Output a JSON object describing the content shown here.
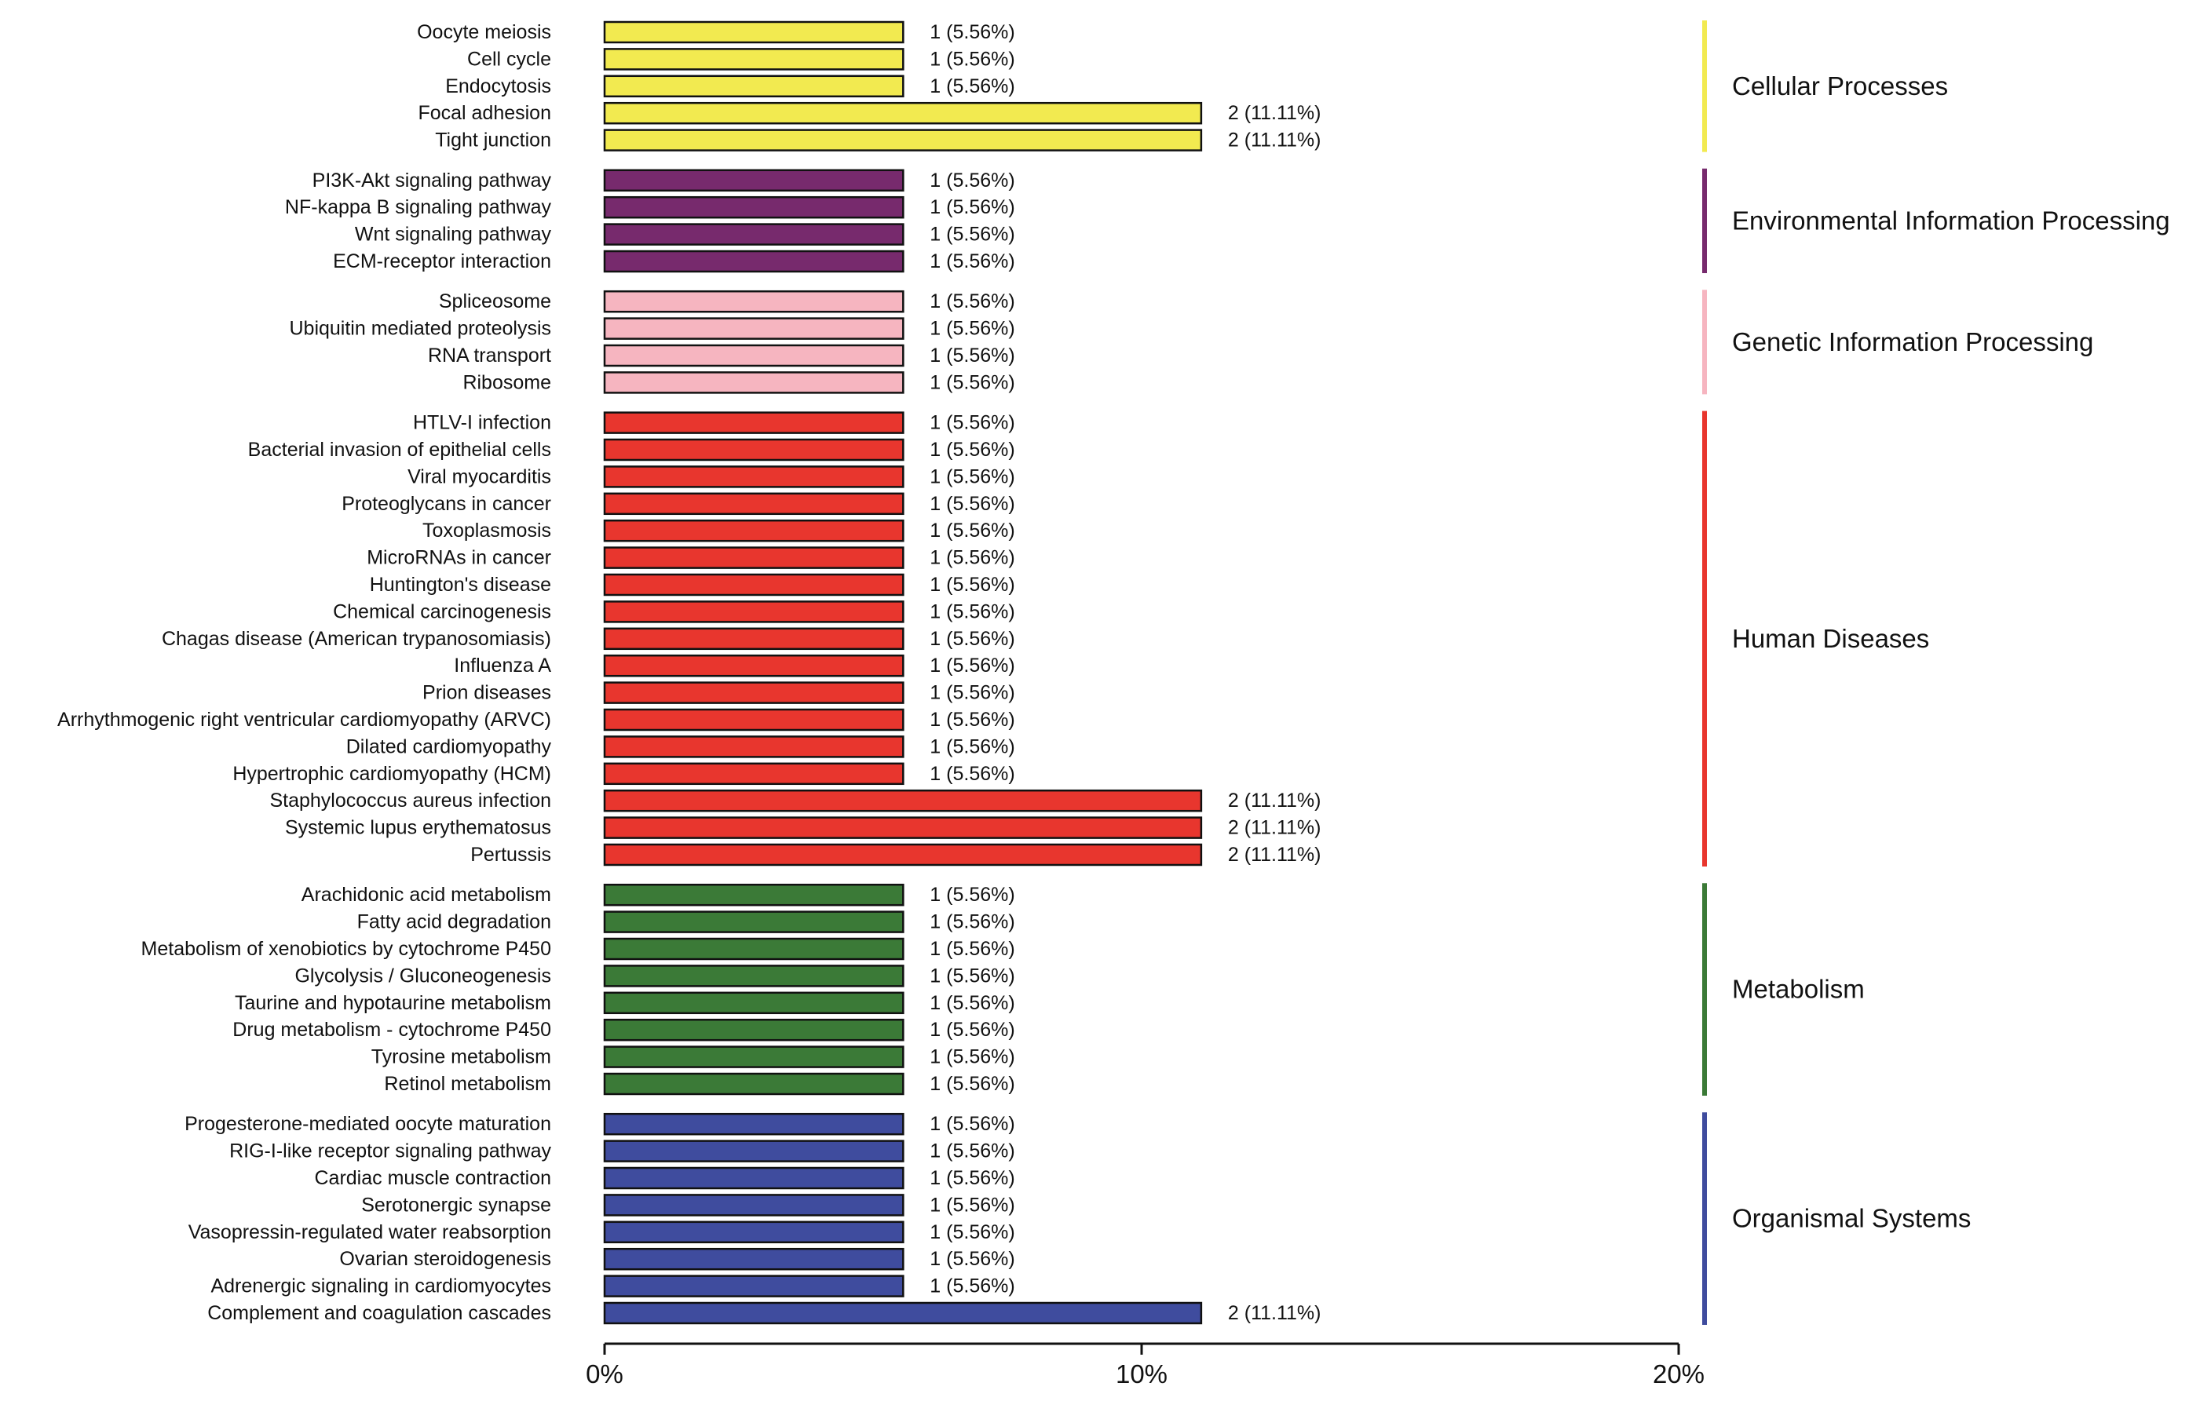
{
  "chart_data": {
    "type": "bar",
    "orientation": "horizontal",
    "title": "",
    "xlabel": "",
    "ylabel": "",
    "xlim": [
      0,
      20
    ],
    "xticks": [
      "0%",
      "10%",
      "20%"
    ],
    "grid": false,
    "groups": [
      {
        "name": "Cellular Processes",
        "color": "#f2ea50",
        "items": [
          {
            "label": "Oocyte meiosis",
            "count": 1,
            "percent": 5.56,
            "text": "1 (5.56%)"
          },
          {
            "label": "Cell cycle",
            "count": 1,
            "percent": 5.56,
            "text": "1 (5.56%)"
          },
          {
            "label": "Endocytosis",
            "count": 1,
            "percent": 5.56,
            "text": "1 (5.56%)"
          },
          {
            "label": "Focal adhesion",
            "count": 2,
            "percent": 11.11,
            "text": "2 (11.11%)"
          },
          {
            "label": "Tight junction",
            "count": 2,
            "percent": 11.11,
            "text": "2 (11.11%)"
          }
        ]
      },
      {
        "name": "Environmental Information Processing",
        "color": "#772a6d",
        "items": [
          {
            "label": "PI3K-Akt signaling pathway",
            "count": 1,
            "percent": 5.56,
            "text": "1 (5.56%)"
          },
          {
            "label": "NF-kappa B signaling pathway",
            "count": 1,
            "percent": 5.56,
            "text": "1 (5.56%)"
          },
          {
            "label": "Wnt signaling pathway",
            "count": 1,
            "percent": 5.56,
            "text": "1 (5.56%)"
          },
          {
            "label": "ECM-receptor interaction",
            "count": 1,
            "percent": 5.56,
            "text": "1 (5.56%)"
          }
        ]
      },
      {
        "name": "Genetic Information Processing",
        "color": "#f6b5c0",
        "items": [
          {
            "label": "Spliceosome",
            "count": 1,
            "percent": 5.56,
            "text": "1 (5.56%)"
          },
          {
            "label": "Ubiquitin mediated proteolysis",
            "count": 1,
            "percent": 5.56,
            "text": "1 (5.56%)"
          },
          {
            "label": "RNA transport",
            "count": 1,
            "percent": 5.56,
            "text": "1 (5.56%)"
          },
          {
            "label": "Ribosome",
            "count": 1,
            "percent": 5.56,
            "text": "1 (5.56%)"
          }
        ]
      },
      {
        "name": "Human Diseases",
        "color": "#e8362e",
        "items": [
          {
            "label": "HTLV-I infection",
            "count": 1,
            "percent": 5.56,
            "text": "1 (5.56%)"
          },
          {
            "label": "Bacterial invasion of epithelial cells",
            "count": 1,
            "percent": 5.56,
            "text": "1 (5.56%)"
          },
          {
            "label": "Viral myocarditis",
            "count": 1,
            "percent": 5.56,
            "text": "1 (5.56%)"
          },
          {
            "label": "Proteoglycans in cancer",
            "count": 1,
            "percent": 5.56,
            "text": "1 (5.56%)"
          },
          {
            "label": "Toxoplasmosis",
            "count": 1,
            "percent": 5.56,
            "text": "1 (5.56%)"
          },
          {
            "label": "MicroRNAs in cancer",
            "count": 1,
            "percent": 5.56,
            "text": "1 (5.56%)"
          },
          {
            "label": "Huntington's disease",
            "count": 1,
            "percent": 5.56,
            "text": "1 (5.56%)"
          },
          {
            "label": "Chemical carcinogenesis",
            "count": 1,
            "percent": 5.56,
            "text": "1 (5.56%)"
          },
          {
            "label": "Chagas disease (American trypanosomiasis)",
            "count": 1,
            "percent": 5.56,
            "text": "1 (5.56%)"
          },
          {
            "label": "Influenza A",
            "count": 1,
            "percent": 5.56,
            "text": "1 (5.56%)"
          },
          {
            "label": "Prion diseases",
            "count": 1,
            "percent": 5.56,
            "text": "1 (5.56%)"
          },
          {
            "label": "Arrhythmogenic right ventricular cardiomyopathy (ARVC)",
            "count": 1,
            "percent": 5.56,
            "text": "1 (5.56%)"
          },
          {
            "label": "Dilated cardiomyopathy",
            "count": 1,
            "percent": 5.56,
            "text": "1 (5.56%)"
          },
          {
            "label": "Hypertrophic cardiomyopathy (HCM)",
            "count": 1,
            "percent": 5.56,
            "text": "1 (5.56%)"
          },
          {
            "label": "Staphylococcus aureus infection",
            "count": 2,
            "percent": 11.11,
            "text": "2 (11.11%)"
          },
          {
            "label": "Systemic lupus erythematosus",
            "count": 2,
            "percent": 11.11,
            "text": "2 (11.11%)"
          },
          {
            "label": "Pertussis",
            "count": 2,
            "percent": 11.11,
            "text": "2 (11.11%)"
          }
        ]
      },
      {
        "name": "Metabolism",
        "color": "#3b7a37",
        "items": [
          {
            "label": "Arachidonic acid metabolism",
            "count": 1,
            "percent": 5.56,
            "text": "1 (5.56%)"
          },
          {
            "label": "Fatty acid degradation",
            "count": 1,
            "percent": 5.56,
            "text": "1 (5.56%)"
          },
          {
            "label": "Metabolism of xenobiotics by cytochrome P450",
            "count": 1,
            "percent": 5.56,
            "text": "1 (5.56%)"
          },
          {
            "label": "Glycolysis / Gluconeogenesis",
            "count": 1,
            "percent": 5.56,
            "text": "1 (5.56%)"
          },
          {
            "label": "Taurine and hypotaurine metabolism",
            "count": 1,
            "percent": 5.56,
            "text": "1 (5.56%)"
          },
          {
            "label": "Drug metabolism - cytochrome P450",
            "count": 1,
            "percent": 5.56,
            "text": "1 (5.56%)"
          },
          {
            "label": "Tyrosine metabolism",
            "count": 1,
            "percent": 5.56,
            "text": "1 (5.56%)"
          },
          {
            "label": "Retinol metabolism",
            "count": 1,
            "percent": 5.56,
            "text": "1 (5.56%)"
          }
        ]
      },
      {
        "name": "Organismal Systems",
        "color": "#3f4c9e",
        "items": [
          {
            "label": "Progesterone-mediated oocyte maturation",
            "count": 1,
            "percent": 5.56,
            "text": "1 (5.56%)"
          },
          {
            "label": "RIG-I-like receptor signaling pathway",
            "count": 1,
            "percent": 5.56,
            "text": "1 (5.56%)"
          },
          {
            "label": "Cardiac muscle contraction",
            "count": 1,
            "percent": 5.56,
            "text": "1 (5.56%)"
          },
          {
            "label": "Serotonergic synapse",
            "count": 1,
            "percent": 5.56,
            "text": "1 (5.56%)"
          },
          {
            "label": "Vasopressin-regulated water reabsorption",
            "count": 1,
            "percent": 5.56,
            "text": "1 (5.56%)"
          },
          {
            "label": "Ovarian steroidogenesis",
            "count": 1,
            "percent": 5.56,
            "text": "1 (5.56%)"
          },
          {
            "label": "Adrenergic signaling in cardiomyocytes",
            "count": 1,
            "percent": 5.56,
            "text": "1 (5.56%)"
          },
          {
            "label": "Complement and coagulation cascades",
            "count": 2,
            "percent": 11.11,
            "text": "2 (11.11%)"
          }
        ]
      }
    ]
  }
}
